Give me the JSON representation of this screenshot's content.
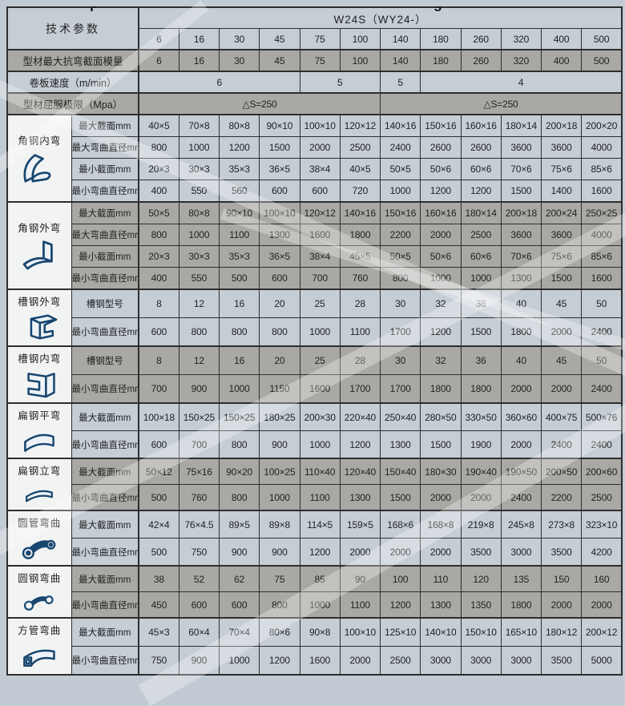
{
  "page": {
    "top_partial_text": {
      "left_char": "p",
      "right_char": "g"
    },
    "colors": {
      "page_background": "#c2cbd3",
      "row_light": "#c5cdd5",
      "row_gray": "#a9a8a4",
      "icon_cell": "#f2f3f3",
      "border": "#2e2e2e",
      "icon_stroke": "#17466f"
    }
  },
  "table": {
    "header": {
      "param_label": "技术参数",
      "model_label": "W24S（WY24-）",
      "models": [
        "6",
        "16",
        "30",
        "45",
        "75",
        "100",
        "140",
        "180",
        "260",
        "320",
        "400",
        "500"
      ]
    },
    "general_rows": [
      {
        "label": "型材最大抗弯截面模量",
        "shade": "gray",
        "cells": [
          {
            "text": "6"
          },
          {
            "text": "16"
          },
          {
            "text": "30"
          },
          {
            "text": "45"
          },
          {
            "text": "75"
          },
          {
            "text": "100"
          },
          {
            "text": "140"
          },
          {
            "text": "180"
          },
          {
            "text": "260"
          },
          {
            "text": "320"
          },
          {
            "text": "400"
          },
          {
            "text": "500"
          }
        ]
      },
      {
        "label": "卷板速度（m/min）",
        "shade": "light",
        "cells": [
          {
            "text": "6",
            "span": 4
          },
          {
            "text": "5",
            "span": 2
          },
          {
            "text": "5",
            "span": 1
          },
          {
            "text": "4",
            "span": 5
          }
        ]
      },
      {
        "label": "型材屈服极限（Mpa）",
        "shade": "gray",
        "cells": [
          {
            "text": "△S=250",
            "span": 6
          },
          {
            "text": "△S=250",
            "span": 6
          }
        ]
      }
    ],
    "sections": [
      {
        "name": "角钢内弯",
        "icon": "angle-steel-inner-bend-icon",
        "shade": "light",
        "rows": [
          {
            "label": "最大截面mm",
            "values": [
              "40×5",
              "70×8",
              "80×8",
              "90×10",
              "100×10",
              "120×12",
              "140×16",
              "150×16",
              "160×16",
              "180×14",
              "200×18",
              "200×20"
            ]
          },
          {
            "label": "最大弯曲直径mm",
            "values": [
              "800",
              "1000",
              "1200",
              "1500",
              "2000",
              "2500",
              "2400",
              "2600",
              "2600",
              "3600",
              "3600",
              "4000"
            ]
          },
          {
            "label": "最小截面mm",
            "values": [
              "20×3",
              "30×3",
              "35×3",
              "36×5",
              "38×4",
              "40×5",
              "50×5",
              "50×6",
              "60×6",
              "70×6",
              "75×6",
              "85×6"
            ]
          },
          {
            "label": "最小弯曲直径mm",
            "values": [
              "400",
              "550",
              "560",
              "600",
              "600",
              "720",
              "1000",
              "1200",
              "1200",
              "1500",
              "1400",
              "1600"
            ]
          }
        ]
      },
      {
        "name": "角钢外弯",
        "icon": "angle-steel-outer-bend-icon",
        "shade": "gray",
        "rows": [
          {
            "label": "最大截面mm",
            "values": [
              "50×5",
              "80×8",
              "90×10",
              "100×10",
              "120×12",
              "140×16",
              "150×16",
              "160×16",
              "180×14",
              "200×18",
              "200×24",
              "250×25"
            ]
          },
          {
            "label": "最大弯曲直径mm",
            "values": [
              "800",
              "1000",
              "1100",
              "1300",
              "1600",
              "1800",
              "2200",
              "2000",
              "2500",
              "3600",
              "3600",
              "4000"
            ]
          },
          {
            "label": "最小截面mm",
            "values": [
              "20×3",
              "30×3",
              "35×3",
              "36×5",
              "38×4",
              "45×5",
              "50×5",
              "50×6",
              "60×6",
              "70×6",
              "75×6",
              "85×6"
            ]
          },
          {
            "label": "最小弯曲直径mm",
            "values": [
              "400",
              "550",
              "500",
              "600",
              "700",
              "760",
              "800",
              "1000",
              "1000",
              "1300",
              "1500",
              "1600"
            ]
          }
        ]
      },
      {
        "name": "槽钢外弯",
        "icon": "channel-steel-outer-bend-icon",
        "shade": "light",
        "rows": [
          {
            "label": "槽钢型号",
            "values": [
              "8",
              "12",
              "16",
              "20",
              "25",
              "28",
              "30",
              "32",
              "36",
              "40",
              "45",
              "50"
            ]
          },
          {
            "label": "最小弯曲直径mm",
            "values": [
              "600",
              "800",
              "800",
              "800",
              "1000",
              "1100",
              "1700",
              "1200",
              "1500",
              "1800",
              "2000",
              "2400"
            ]
          }
        ]
      },
      {
        "name": "槽钢内弯",
        "icon": "channel-steel-inner-bend-icon",
        "shade": "gray",
        "rows": [
          {
            "label": "槽钢型号",
            "values": [
              "8",
              "12",
              "16",
              "20",
              "25",
              "28",
              "30",
              "32",
              "36",
              "40",
              "45",
              "50"
            ]
          },
          {
            "label": "最小弯曲直径mm",
            "values": [
              "700",
              "900",
              "1000",
              "1150",
              "1600",
              "1700",
              "1700",
              "1800",
              "1800",
              "2000",
              "2000",
              "2400"
            ]
          }
        ]
      },
      {
        "name": "扁钢平弯",
        "icon": "flat-steel-flat-bend-icon",
        "shade": "light",
        "rows": [
          {
            "label": "最大截面mm",
            "values": [
              "100×18",
              "150×25",
              "150×25",
              "180×25",
              "200×30",
              "220×40",
              "250×40",
              "280×50",
              "330×50",
              "360×60",
              "400×75",
              "500×76"
            ]
          },
          {
            "label": "最小弯曲直径mm",
            "values": [
              "600",
              "700",
              "800",
              "900",
              "1000",
              "1200",
              "1300",
              "1500",
              "1900",
              "2000",
              "2400",
              "2400"
            ]
          }
        ]
      },
      {
        "name": "扁钢立弯",
        "icon": "flat-steel-edge-bend-icon",
        "shade": "gray",
        "rows": [
          {
            "label": "最大截面mm",
            "values": [
              "50×12",
              "75×16",
              "90×20",
              "100×25",
              "110×40",
              "120×40",
              "150×40",
              "180×30",
              "190×40",
              "190×50",
              "200×50",
              "200×60"
            ]
          },
          {
            "label": "最小弯曲直径mm",
            "values": [
              "500",
              "760",
              "800",
              "1000",
              "1100",
              "1300",
              "1500",
              "2000",
              "2000",
              "2400",
              "2200",
              "2500"
            ]
          }
        ]
      },
      {
        "name": "圆管弯曲",
        "icon": "round-tube-bend-icon",
        "shade": "light",
        "rows": [
          {
            "label": "最大截面mm",
            "values": [
              "42×4",
              "76×4.5",
              "89×5",
              "89×8",
              "114×5",
              "159×5",
              "168×6",
              "168×8",
              "219×8",
              "245×8",
              "273×8",
              "323×10"
            ]
          },
          {
            "label": "最小弯曲直径mm",
            "values": [
              "500",
              "750",
              "900",
              "900",
              "1200",
              "2000",
              "2000",
              "2000",
              "3500",
              "3000",
              "3500",
              "4200"
            ]
          }
        ]
      },
      {
        "name": "圆钢弯曲",
        "icon": "round-steel-bend-icon",
        "shade": "gray",
        "rows": [
          {
            "label": "最大截面mm",
            "values": [
              "38",
              "52",
              "62",
              "75",
              "85",
              "90",
              "100",
              "110",
              "120",
              "135",
              "150",
              "160"
            ]
          },
          {
            "label": "最小弯曲直径mm",
            "values": [
              "450",
              "600",
              "600",
              "800",
              "1000",
              "1100",
              "1200",
              "1300",
              "1350",
              "1800",
              "2000",
              "2000"
            ]
          }
        ]
      },
      {
        "name": "方管弯曲",
        "icon": "square-tube-bend-icon",
        "shade": "light",
        "rows": [
          {
            "label": "最大截面mm",
            "values": [
              "45×3",
              "60×4",
              "70×4",
              "80×6",
              "90×8",
              "100×10",
              "125×10",
              "140×10",
              "150×10",
              "165×10",
              "180×12",
              "200×12"
            ]
          },
          {
            "label": "最小弯曲直径mm",
            "values": [
              "750",
              "900",
              "1000",
              "1200",
              "1600",
              "2000",
              "2500",
              "3000",
              "3000",
              "3000",
              "3500",
              "5000"
            ]
          }
        ]
      }
    ]
  }
}
